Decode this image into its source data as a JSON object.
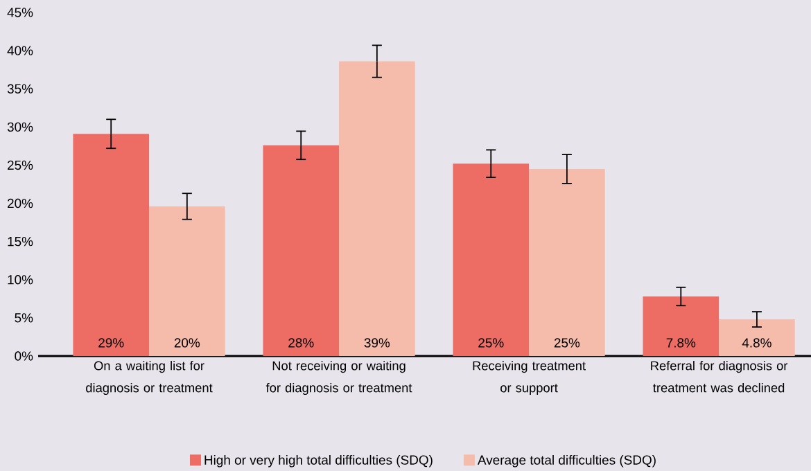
{
  "chart_data": {
    "type": "bar",
    "categories": [
      "On a waiting list for diagnosis or treatment",
      "Not receiving or waiting for diagnosis or treatment",
      "Receiving treatment or support",
      "Referral for diagnosis or treatment was declined"
    ],
    "series": [
      {
        "name": "High or very high total difficulties (SDQ)",
        "color": "#ed6c64",
        "values": [
          29.1,
          27.6,
          25.2,
          7.8
        ],
        "errors": [
          1.9,
          1.85,
          1.8,
          1.2
        ],
        "value_labels": [
          "29%",
          "28%",
          "25%",
          "7.8%"
        ]
      },
      {
        "name": "Average total difficulties (SDQ)",
        "color": "#f5bcab",
        "values": [
          19.6,
          38.6,
          24.5,
          4.8
        ],
        "errors": [
          1.7,
          2.1,
          1.9,
          1.0
        ],
        "value_labels": [
          "20%",
          "39%",
          "25%",
          "4.8%"
        ]
      }
    ],
    "ylim": [
      0,
      45
    ],
    "yticks": [
      {
        "value": 0,
        "label": "0%"
      },
      {
        "value": 5,
        "label": "5%"
      },
      {
        "value": 10,
        "label": "10%"
      },
      {
        "value": 15,
        "label": "15%"
      },
      {
        "value": 20,
        "label": "20%"
      },
      {
        "value": 25,
        "label": "25%"
      },
      {
        "value": 30,
        "label": "30%"
      },
      {
        "value": 35,
        "label": "35%"
      },
      {
        "value": 40,
        "label": "40%"
      },
      {
        "value": 45,
        "label": "45%"
      }
    ],
    "grid": false,
    "legend": "bottom"
  }
}
